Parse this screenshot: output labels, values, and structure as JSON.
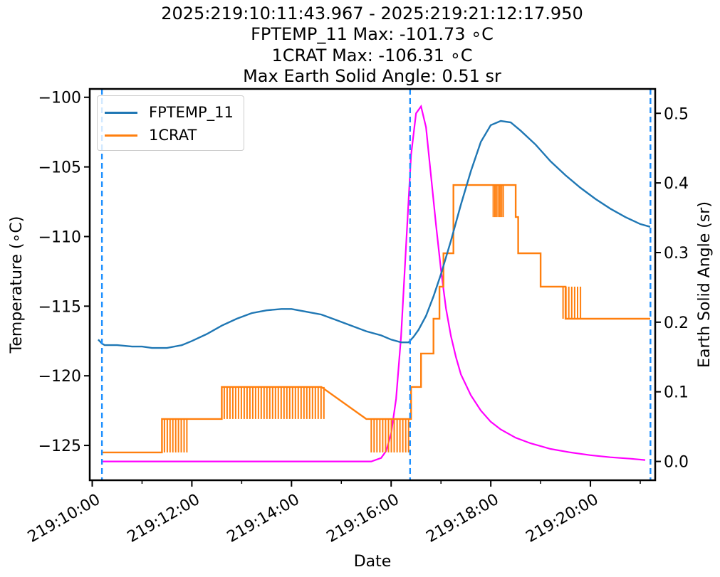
{
  "title": {
    "line1": "2025:219:10:11:43.967 - 2025:219:21:12:17.950",
    "line2": "FPTEMP_11 Max: -101.73 ∘C",
    "line3": "1CRAT Max: -106.31 ∘C",
    "line4": "Max Earth Solid Angle: 0.51 sr"
  },
  "chart_data": {
    "type": "line",
    "xlabel": "Date",
    "ylabel": "Temperature (∘C)",
    "y2label": "Earth Solid Angle (sr)",
    "x_unit": "hours (day 219)",
    "xlim": [
      9.95,
      21.3
    ],
    "ylim": [
      -127.5,
      -99.4
    ],
    "y2lim": [
      -0.027,
      0.535
    ],
    "x_ticks": [
      10,
      12,
      14,
      16,
      18,
      20
    ],
    "x_tick_labels": [
      "219:10:00",
      "219:12:00",
      "219:14:00",
      "219:16:00",
      "219:18:00",
      "219:20:00"
    ],
    "y_ticks": [
      -100,
      -105,
      -110,
      -115,
      -120,
      -125
    ],
    "y_tick_labels": [
      "−100",
      "−105",
      "−110",
      "−115",
      "−120",
      "−125"
    ],
    "y2_ticks": [
      0.0,
      0.1,
      0.2,
      0.3,
      0.4,
      0.5
    ],
    "y2_tick_labels": [
      "0.0",
      "0.1",
      "0.2",
      "0.3",
      "0.4",
      "0.5"
    ],
    "vlines": [
      10.195,
      16.38,
      21.205
    ],
    "vline_color": "#1e90ff",
    "legend_position": "upper left",
    "series": [
      {
        "name": "FPTEMP_11",
        "color": "#1f77b4",
        "axis": "left",
        "x": [
          10.12,
          10.2,
          10.25,
          10.5,
          10.8,
          11.0,
          11.2,
          11.5,
          11.8,
          12.0,
          12.3,
          12.6,
          12.9,
          13.2,
          13.5,
          13.8,
          14.0,
          14.3,
          14.6,
          14.9,
          15.2,
          15.5,
          15.8,
          16.0,
          16.2,
          16.35,
          16.45,
          16.55,
          16.7,
          16.85,
          17.0,
          17.2,
          17.4,
          17.6,
          17.8,
          18.0,
          18.2,
          18.4,
          18.6,
          18.9,
          19.2,
          19.5,
          19.8,
          20.1,
          20.4,
          20.7,
          21.0,
          21.2
        ],
        "y": [
          -117.4,
          -117.7,
          -117.8,
          -117.8,
          -117.9,
          -117.9,
          -118.0,
          -118.0,
          -117.8,
          -117.5,
          -117.0,
          -116.4,
          -115.9,
          -115.5,
          -115.3,
          -115.2,
          -115.2,
          -115.4,
          -115.6,
          -116.0,
          -116.4,
          -116.8,
          -117.1,
          -117.4,
          -117.6,
          -117.6,
          -117.2,
          -116.7,
          -115.7,
          -114.3,
          -112.7,
          -110.3,
          -107.7,
          -105.3,
          -103.2,
          -102.0,
          -101.7,
          -101.8,
          -102.4,
          -103.4,
          -104.6,
          -105.6,
          -106.5,
          -107.3,
          -108.0,
          -108.6,
          -109.1,
          -109.3
        ]
      },
      {
        "name": "1CRAT",
        "color": "#ff7f0e",
        "axis": "left",
        "x": [
          10.2,
          11.4,
          11.4,
          11.65,
          12.0,
          12.6,
          12.6,
          14.6,
          15.5,
          15.5,
          16.4,
          16.4,
          16.6,
          16.6,
          16.85,
          16.85,
          16.97,
          16.97,
          17.05,
          17.05,
          17.25,
          17.25,
          18.5,
          18.5,
          18.55,
          18.55,
          19.0,
          19.0,
          19.5,
          19.5,
          21.2
        ],
        "y": [
          -125.5,
          -125.5,
          -123.1,
          -123.1,
          -123.1,
          -123.1,
          -120.8,
          -120.8,
          -123.1,
          -123.1,
          -123.1,
          -120.8,
          -120.8,
          -118.4,
          -118.4,
          -115.9,
          -115.9,
          -113.6,
          -113.6,
          -111.2,
          -111.2,
          -106.3,
          -106.3,
          -108.6,
          -108.6,
          -111.2,
          -111.2,
          -113.6,
          -113.6,
          -115.9,
          -115.9
        ],
        "noise_bands": [
          [
            11.45,
            11.9,
            -125.5,
            -123.1
          ],
          [
            12.65,
            14.65,
            -123.1,
            -120.8
          ],
          [
            15.6,
            16.35,
            -125.5,
            -123.1
          ],
          [
            18.05,
            18.25,
            -108.6,
            -106.3
          ],
          [
            19.45,
            19.8,
            -115.9,
            -113.6
          ]
        ]
      },
      {
        "name": "Earth Solid Angle",
        "color": "#ff00ff",
        "axis": "right",
        "x": [
          10.2,
          11.0,
          12.0,
          13.0,
          14.0,
          15.0,
          15.6,
          15.8,
          15.9,
          16.0,
          16.1,
          16.2,
          16.3,
          16.4,
          16.5,
          16.6,
          16.7,
          16.8,
          16.9,
          17.0,
          17.1,
          17.2,
          17.3,
          17.4,
          17.6,
          17.8,
          18.0,
          18.2,
          18.5,
          18.8,
          19.2,
          19.6,
          20.0,
          20.4,
          20.8,
          21.1
        ],
        "y": [
          0.0,
          0.0,
          0.0,
          0.0,
          0.0,
          0.0,
          0.0,
          0.005,
          0.015,
          0.04,
          0.09,
          0.18,
          0.31,
          0.44,
          0.5,
          0.51,
          0.48,
          0.41,
          0.34,
          0.275,
          0.22,
          0.18,
          0.15,
          0.125,
          0.095,
          0.073,
          0.057,
          0.046,
          0.034,
          0.026,
          0.018,
          0.013,
          0.009,
          0.006,
          0.004,
          0.002
        ]
      }
    ]
  }
}
